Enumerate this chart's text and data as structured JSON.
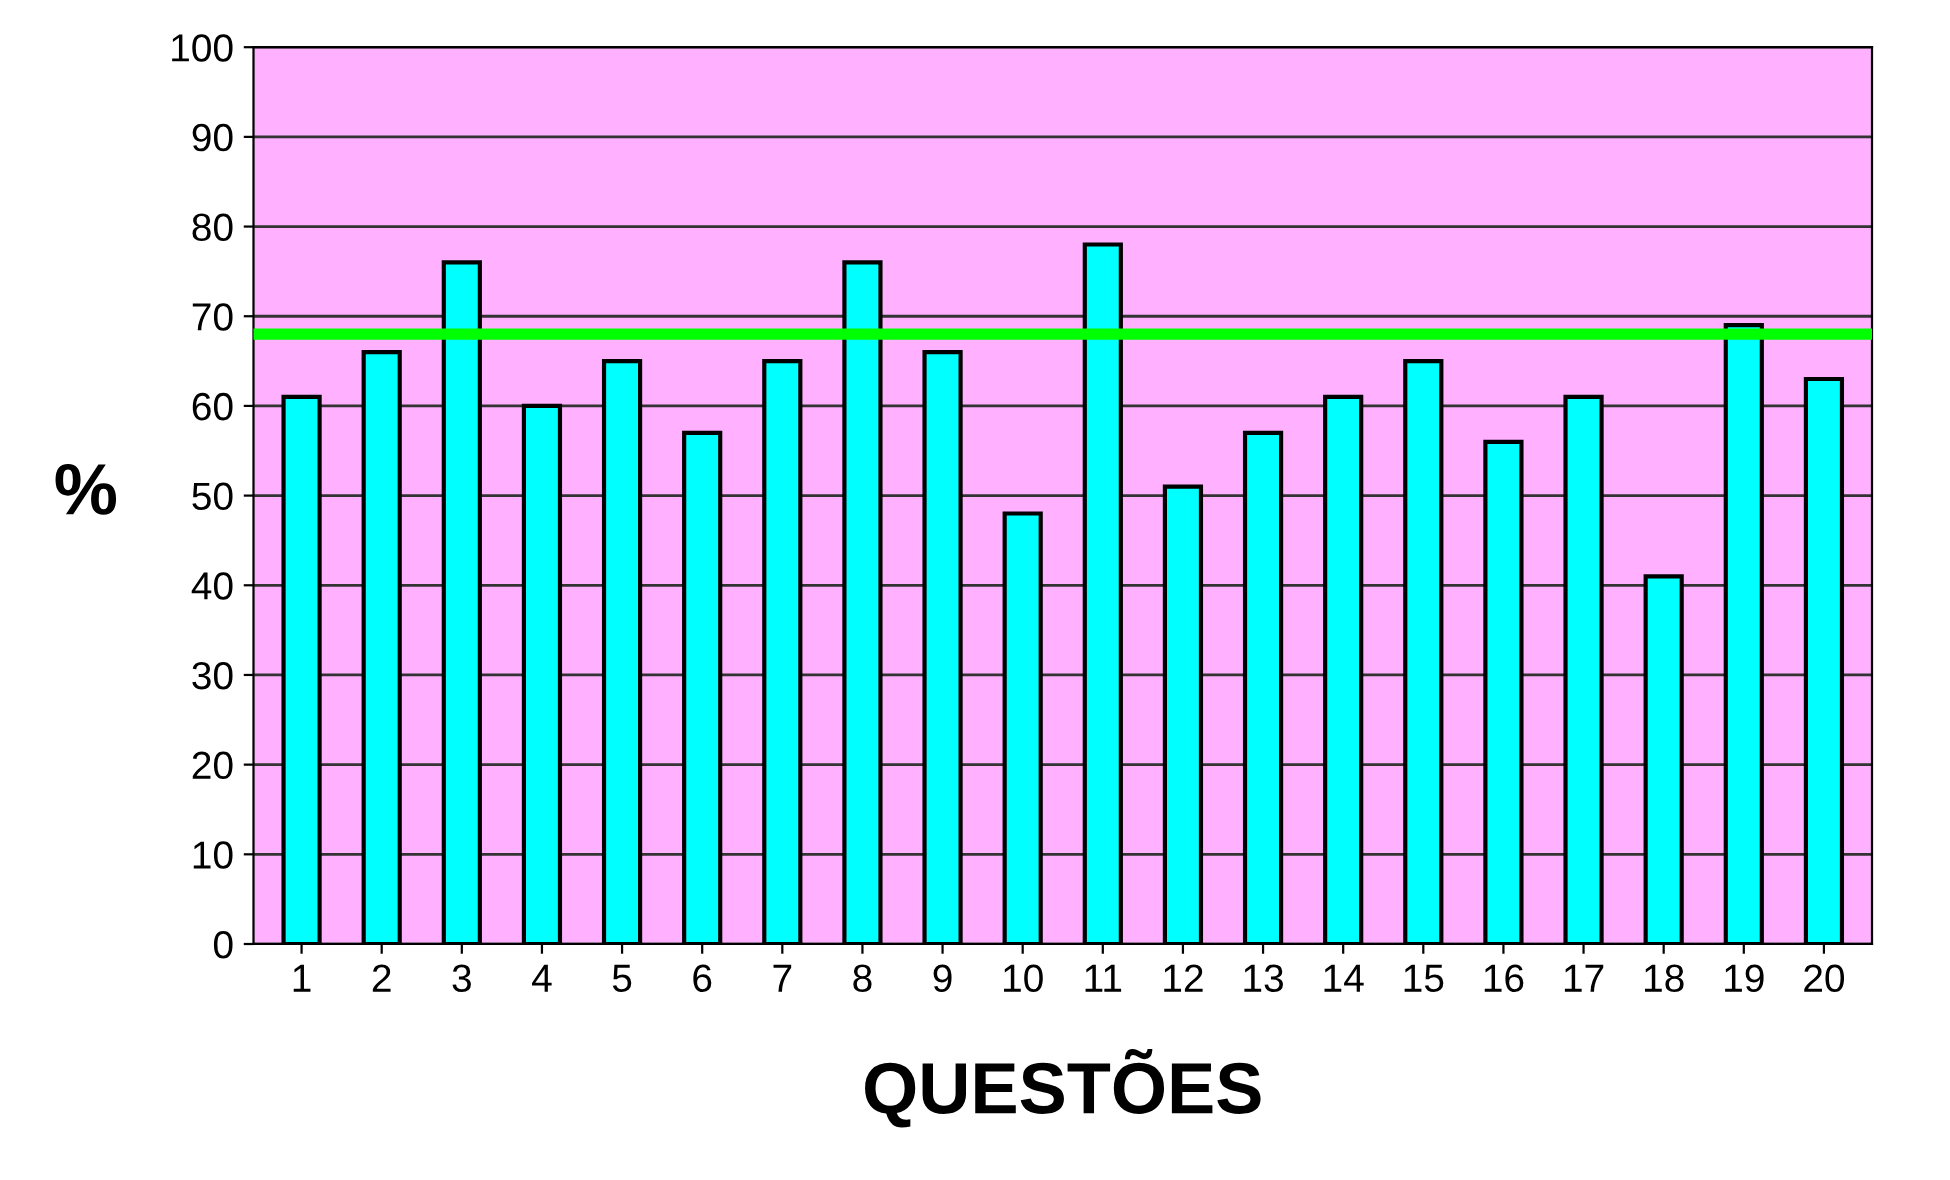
{
  "chart_data": {
    "type": "bar",
    "xlabel": "QUESTÕES",
    "ylabel": "%",
    "categories": [
      "1",
      "2",
      "3",
      "4",
      "5",
      "6",
      "7",
      "8",
      "9",
      "10",
      "11",
      "12",
      "13",
      "14",
      "15",
      "16",
      "17",
      "18",
      "19",
      "20"
    ],
    "values": [
      61,
      66,
      76,
      60,
      65,
      57,
      65,
      76,
      66,
      48,
      78,
      51,
      57,
      61,
      65,
      56,
      61,
      41,
      69,
      63
    ],
    "color": "#00ffff",
    "ylim": [
      0,
      100
    ],
    "yticks": [
      0,
      10,
      20,
      30,
      40,
      50,
      60,
      70,
      80,
      90,
      100
    ],
    "grid": "y",
    "ref_lines": [
      {
        "axis": "y",
        "value": 68,
        "color": "#00ff00",
        "line_style": "solid"
      }
    ]
  }
}
